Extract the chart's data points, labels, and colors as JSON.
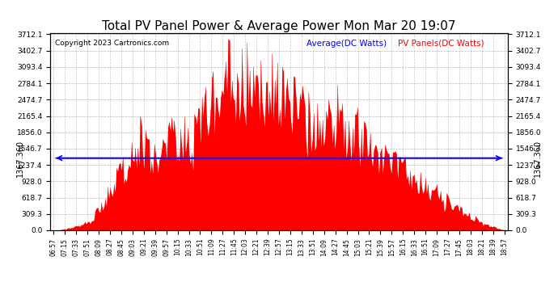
{
  "title": "Total PV Panel Power & Average Power Mon Mar 20 19:07",
  "copyright": "Copyright 2023 Cartronics.com",
  "legend_average": "Average(DC Watts)",
  "legend_pv": "PV Panels(DC Watts)",
  "average_value": 1367.36,
  "y_max": 3712.1,
  "y_min": 0.0,
  "yticks": [
    0.0,
    309.3,
    618.7,
    928.0,
    1237.4,
    1546.7,
    1856.0,
    2165.4,
    2474.7,
    2784.1,
    3093.4,
    3402.7,
    3712.1
  ],
  "fill_color": "#ff0000",
  "average_line_color": "#0000ff",
  "background_color": "#ffffff",
  "grid_color": "#b0b0b0",
  "title_fontsize": 11,
  "tick_fontsize": 6.5,
  "x_label_fontsize": 5.5,
  "copyright_fontsize": 6.5,
  "legend_fontsize": 7.5,
  "avg_label_fontsize": 7
}
